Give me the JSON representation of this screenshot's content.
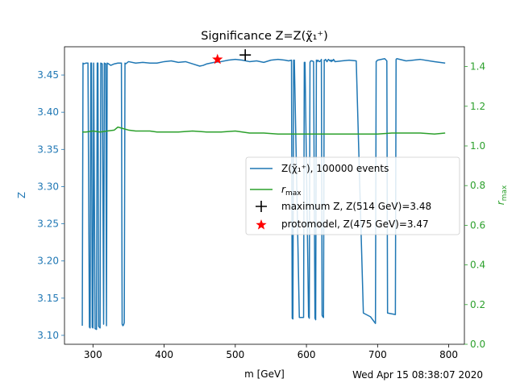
{
  "chart_data": {
    "type": "line",
    "title": "Significance Z=Z(χ̃₁⁺)",
    "xlabel": "m [GeV]",
    "ylabel": "Z",
    "y2label": "r_max",
    "xlim": [
      260,
      822
    ],
    "ylim": [
      3.088,
      3.488
    ],
    "y2lim": [
      0.0,
      1.5
    ],
    "xticks": [
      300,
      400,
      500,
      600,
      700,
      800
    ],
    "yticks": [
      3.1,
      3.15,
      3.2,
      3.25,
      3.3,
      3.35,
      3.4,
      3.45
    ],
    "y2ticks": [
      0.0,
      0.2,
      0.4,
      0.6,
      0.8,
      1.0,
      1.2,
      1.4
    ],
    "legend_placement": "center-right",
    "timestamp": "Wed Apr 15 08:38:07 2020",
    "colors": {
      "z_series": "#1f77b4",
      "rmax_series": "#2ca02c",
      "max_marker": "#000000",
      "proto_marker": "#ff0000",
      "axis_left": "#1f77b4",
      "axis_right": "#2ca02c"
    },
    "series": [
      {
        "name": "Z(χ̃₁⁺), 100000 events",
        "axis": "left",
        "x": [
          285,
          286,
          287,
          290,
          293,
          295,
          296,
          297,
          298,
          299,
          300,
          301,
          303,
          305,
          306,
          307,
          308,
          310,
          311,
          313,
          315,
          316,
          318,
          319,
          320,
          322,
          325,
          330,
          335,
          340,
          341,
          342,
          343,
          344,
          345,
          346,
          350,
          360,
          370,
          380,
          390,
          400,
          410,
          420,
          430,
          440,
          450,
          455,
          460,
          470,
          480,
          490,
          500,
          510,
          520,
          530,
          540,
          550,
          560,
          570,
          575,
          579,
          580,
          581,
          582,
          583,
          590,
          596,
          597,
          598,
          603,
          604,
          605,
          606,
          608,
          610,
          612,
          613,
          614,
          615,
          616,
          618,
          620,
          621,
          622,
          623,
          624,
          625,
          626,
          627,
          628,
          629,
          630,
          631,
          632,
          633,
          634,
          635,
          636,
          637,
          638,
          639,
          640,
          650,
          660,
          670,
          680,
          690,
          697,
          698,
          700,
          710,
          712,
          713,
          714,
          725,
          726,
          727,
          740,
          760,
          780,
          795
        ],
        "values": [
          3.113,
          3.466,
          3.465,
          3.466,
          3.466,
          3.111,
          3.11,
          3.466,
          3.466,
          3.111,
          3.11,
          3.466,
          3.109,
          3.108,
          3.466,
          3.466,
          3.112,
          3.11,
          3.466,
          3.465,
          3.115,
          3.466,
          3.465,
          3.113,
          3.466,
          3.465,
          3.463,
          3.465,
          3.466,
          3.466,
          3.115,
          3.113,
          3.114,
          3.117,
          3.466,
          3.465,
          3.468,
          3.466,
          3.467,
          3.466,
          3.466,
          3.468,
          3.469,
          3.467,
          3.468,
          3.465,
          3.462,
          3.463,
          3.465,
          3.467,
          3.468,
          3.47,
          3.471,
          3.47,
          3.468,
          3.469,
          3.467,
          3.47,
          3.471,
          3.47,
          3.469,
          3.47,
          3.123,
          3.122,
          3.47,
          3.47,
          3.124,
          3.124,
          3.467,
          3.467,
          3.125,
          3.123,
          3.467,
          3.469,
          3.469,
          3.468,
          3.123,
          3.121,
          3.47,
          3.468,
          3.47,
          3.468,
          3.469,
          3.471,
          3.127,
          3.125,
          3.124,
          3.47,
          3.47,
          3.471,
          3.469,
          3.468,
          3.47,
          3.471,
          3.47,
          3.469,
          3.47,
          3.468,
          3.47,
          3.469,
          3.471,
          3.47,
          3.468,
          3.469,
          3.47,
          3.469,
          3.13,
          3.125,
          3.116,
          3.468,
          3.47,
          3.472,
          3.47,
          3.469,
          3.13,
          3.128,
          3.471,
          3.472,
          3.469,
          3.471,
          3.468,
          3.466
        ]
      },
      {
        "name": "r_max",
        "axis": "right",
        "x": [
          285,
          290,
          300,
          310,
          320,
          330,
          335,
          340,
          345,
          350,
          360,
          370,
          380,
          390,
          400,
          410,
          420,
          440,
          460,
          480,
          500,
          520,
          540,
          560,
          580,
          600,
          620,
          640,
          660,
          680,
          700,
          720,
          740,
          760,
          780,
          795
        ],
        "values": [
          1.07,
          1.07,
          1.075,
          1.07,
          1.075,
          1.08,
          1.095,
          1.09,
          1.085,
          1.08,
          1.075,
          1.075,
          1.075,
          1.07,
          1.07,
          1.07,
          1.07,
          1.075,
          1.07,
          1.07,
          1.075,
          1.065,
          1.065,
          1.06,
          1.06,
          1.06,
          1.06,
          1.06,
          1.06,
          1.06,
          1.06,
          1.065,
          1.065,
          1.065,
          1.06,
          1.065
        ]
      },
      {
        "name": "maximum Z, Z(514 GeV)=3.48",
        "axis": "left",
        "marker": "plus",
        "x": [
          514
        ],
        "values": [
          3.477
        ]
      },
      {
        "name": "protomodel, Z(475 GeV)=3.47",
        "axis": "left",
        "marker": "star",
        "x": [
          475
        ],
        "values": [
          3.471
        ]
      }
    ]
  }
}
